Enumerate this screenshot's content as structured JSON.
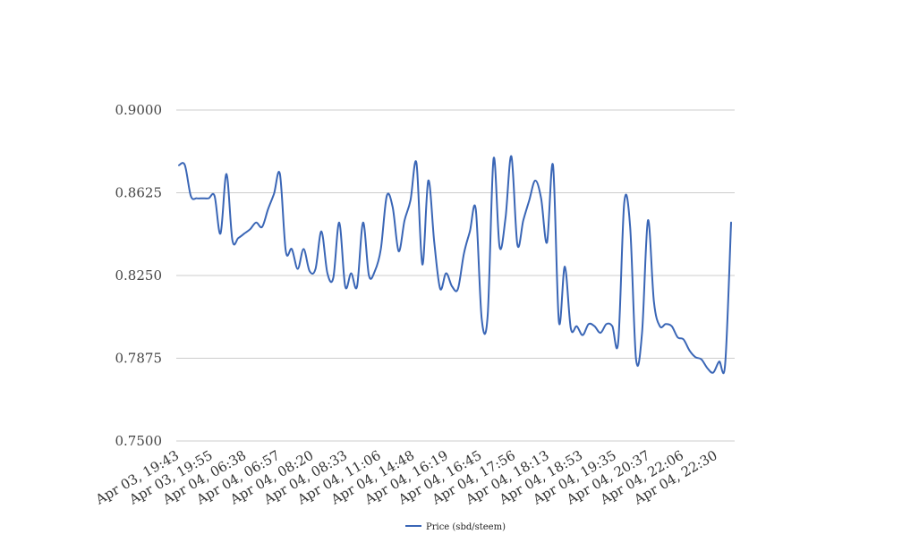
{
  "chart_data": {
    "type": "line",
    "title": "",
    "xlabel": "",
    "ylabel": "",
    "ylim": [
      0.75,
      0.9
    ],
    "y_ticks": [
      "0.7500",
      "0.7875",
      "0.8250",
      "0.8625",
      "0.9000"
    ],
    "y_tick_values": [
      0.75,
      0.7875,
      0.825,
      0.8625,
      0.9
    ],
    "x_tick_labels": [
      "Apr 03, 19:43",
      "Apr 03, 19:55",
      "Apr 04, 06:38",
      "Apr 04, 06:57",
      "Apr 04, 08:20",
      "Apr 04, 08:33",
      "Apr 04, 11:06",
      "Apr 04, 14:48",
      "Apr 04, 16:19",
      "Apr 04, 16:45",
      "Apr 04, 17:56",
      "Apr 04, 18:13",
      "Apr 04, 18:53",
      "Apr 04, 19:35",
      "Apr 04, 20:37",
      "Apr 04, 22:06",
      "Apr 04, 22:30"
    ],
    "grid": true,
    "legend_position": "bottom",
    "series": [
      {
        "name": "Price (sbd/steem)",
        "color": "#3a66b6",
        "values": [
          0.875,
          0.875,
          0.861,
          0.86,
          0.86,
          0.86,
          0.861,
          0.844,
          0.871,
          0.841,
          0.842,
          0.844,
          0.846,
          0.849,
          0.847,
          0.855,
          0.862,
          0.871,
          0.836,
          0.837,
          0.828,
          0.837,
          0.827,
          0.828,
          0.845,
          0.826,
          0.824,
          0.849,
          0.82,
          0.826,
          0.82,
          0.849,
          0.825,
          0.827,
          0.837,
          0.861,
          0.856,
          0.836,
          0.85,
          0.859,
          0.876,
          0.83,
          0.868,
          0.84,
          0.819,
          0.826,
          0.82,
          0.819,
          0.835,
          0.845,
          0.855,
          0.805,
          0.807,
          0.878,
          0.838,
          0.851,
          0.879,
          0.839,
          0.85,
          0.859,
          0.868,
          0.86,
          0.84,
          0.875,
          0.804,
          0.829,
          0.801,
          0.802,
          0.798,
          0.803,
          0.802,
          0.799,
          0.803,
          0.802,
          0.795,
          0.858,
          0.847,
          0.787,
          0.799,
          0.85,
          0.813,
          0.802,
          0.803,
          0.802,
          0.797,
          0.796,
          0.791,
          0.788,
          0.787,
          0.783,
          0.781,
          0.786,
          0.785,
          0.849
        ]
      }
    ]
  }
}
